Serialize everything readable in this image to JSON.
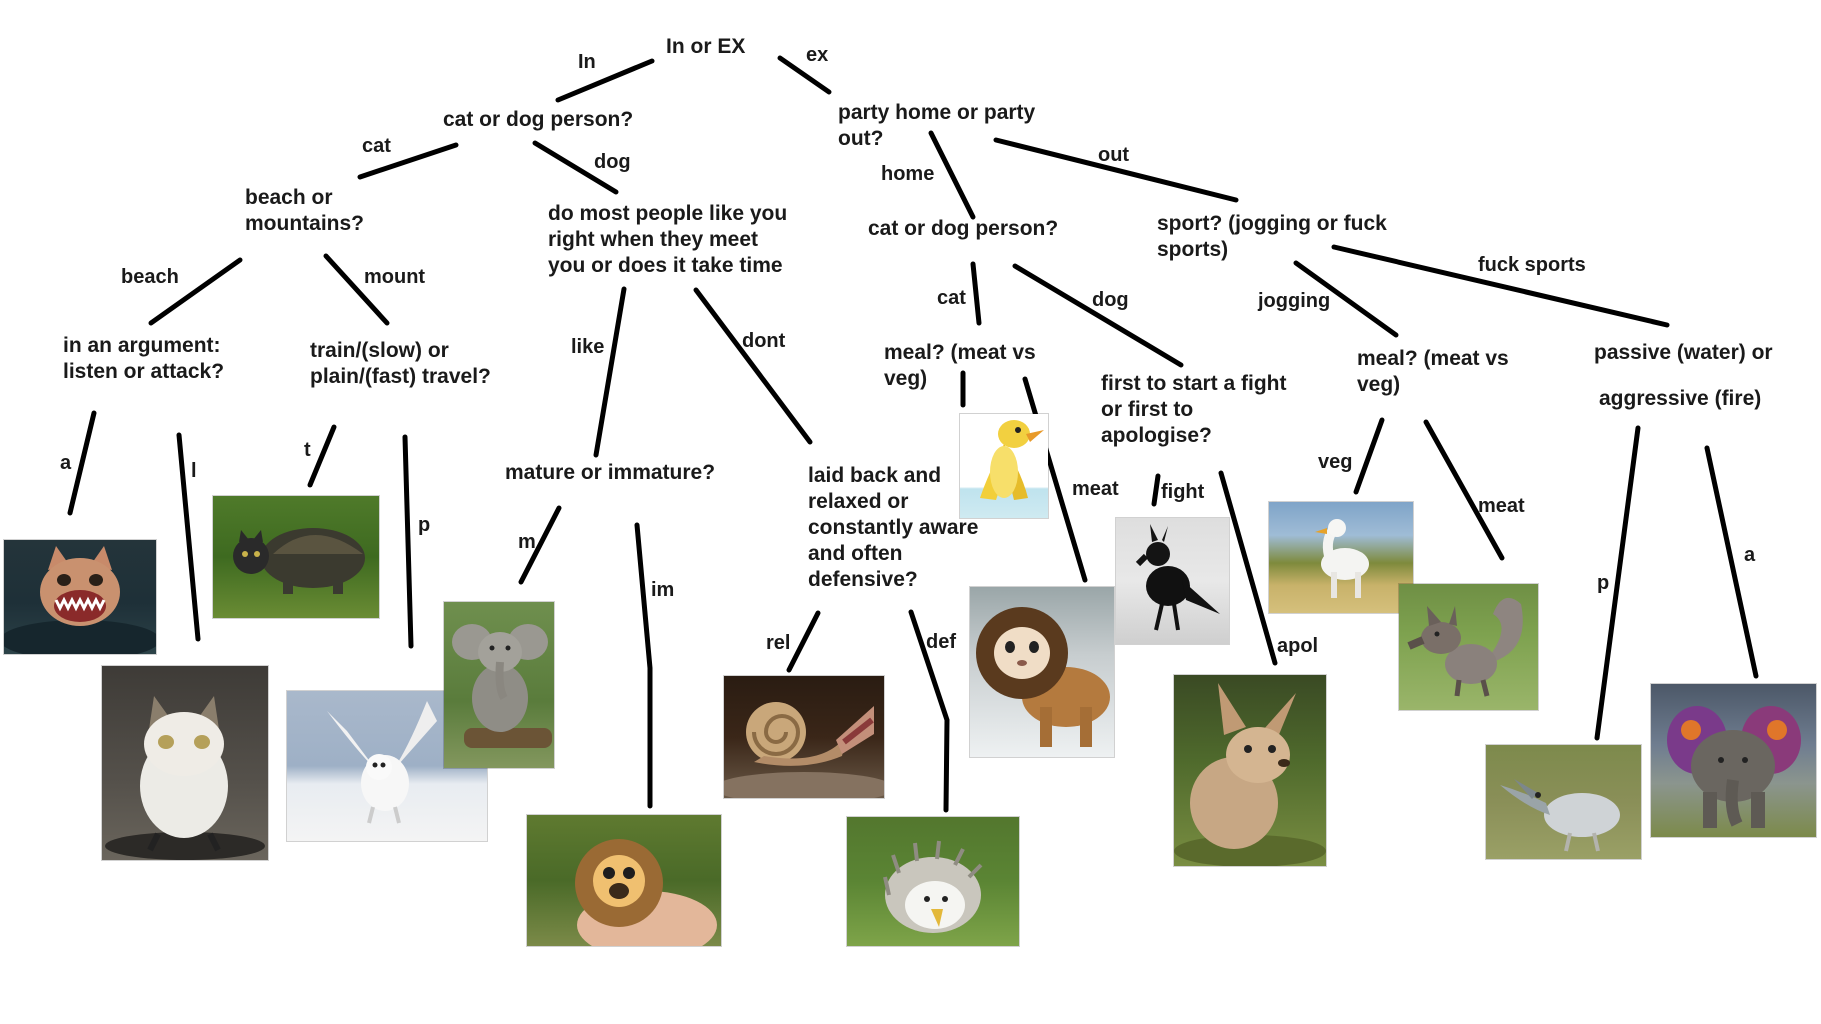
{
  "root": {
    "question": "In or EX"
  },
  "edges": {
    "in": "In",
    "ex": "ex",
    "cat": "cat",
    "dog": "dog",
    "home": "home",
    "out": "out",
    "beach": "beach",
    "mount": "mount",
    "like": "like",
    "dont": "dont",
    "home_cat": "cat",
    "home_dog": "dog",
    "jogging": "jogging",
    "fuck_sports": "fuck sports",
    "a": "a",
    "l": "l",
    "t": "t",
    "p": "p",
    "m": "m",
    "im": "im",
    "rel": "rel",
    "def": "def",
    "meat1": "meat",
    "fight": "fight",
    "apol": "apol",
    "veg": "veg",
    "meat2": "meat",
    "p2": "p",
    "a2": "a"
  },
  "questions": {
    "cat_or_dog_1": "cat or dog person?",
    "party": [
      "party home or party",
      "out?"
    ],
    "beach_or_mountains": [
      "beach or",
      "mountains?"
    ],
    "people_like": [
      "do most people like you",
      "right when they meet",
      "you or does it take time"
    ],
    "cat_or_dog_2": "cat or dog person?",
    "sport": [
      "sport? (jogging or fuck",
      "sports)"
    ],
    "argument": [
      "in an argument:",
      "listen or attack?"
    ],
    "travel": [
      "train/(slow) or",
      "plain/(fast) travel?"
    ],
    "mature": "mature or immature?",
    "laid_back": [
      "laid back and",
      "relaxed or",
      "constantly aware",
      "and often",
      "defensive?"
    ],
    "meal_1": [
      "meal? (meat vs",
      "veg)"
    ],
    "fight_apologise": [
      "first to start a fight",
      "or first to",
      "apologise?"
    ],
    "meal_2": [
      "meal? (meat vs",
      "veg)"
    ],
    "passive_1": "passive (water) or",
    "passive_2": "aggressive (fire)"
  },
  "results": [
    {
      "animal": "shark-cat",
      "icon": "shark-cat-icon"
    },
    {
      "animal": "penguin-cat",
      "icon": "penguin-cat-icon"
    },
    {
      "animal": "cat-turtle",
      "icon": "cat-turtle-icon"
    },
    {
      "animal": "owl-dog",
      "icon": "owl-dog-icon"
    },
    {
      "animal": "koala-elephant",
      "icon": "koala-elephant-icon"
    },
    {
      "animal": "hedgehog-monkey",
      "icon": "hedgehog-monkey-icon"
    },
    {
      "animal": "snail-hippo",
      "icon": "snail-hippo-icon"
    },
    {
      "animal": "hedgehog-eagle",
      "icon": "hedgehog-eagle-icon"
    },
    {
      "animal": "banana-duck",
      "icon": "banana-duck-icon"
    },
    {
      "animal": "guinea-lion",
      "icon": "guinea-lion-icon"
    },
    {
      "animal": "crow-dog",
      "icon": "crow-dog-icon"
    },
    {
      "animal": "chihuahua-rabbit",
      "icon": "chihuahua-rabbit-icon"
    },
    {
      "animal": "duck-horse",
      "icon": "duck-horse-icon"
    },
    {
      "animal": "wolf-squirrel",
      "icon": "wolf-squirrel-icon"
    },
    {
      "animal": "pelican-shark",
      "icon": "pelican-shark-icon"
    },
    {
      "animal": "butterfly-elephant",
      "icon": "butterfly-elephant-icon"
    }
  ],
  "colors": {
    "background": "#ffffff",
    "ink": "#000000"
  }
}
